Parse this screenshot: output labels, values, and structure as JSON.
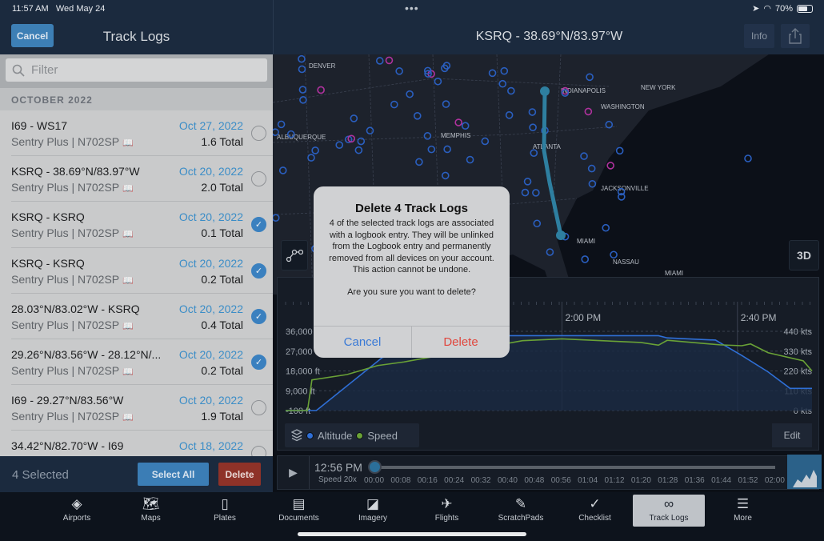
{
  "status_bar": {
    "time": "11:57 AM",
    "date": "Wed May 24",
    "battery": "70%",
    "battery_level": 0.7
  },
  "left": {
    "cancel": "Cancel",
    "title": "Track Logs",
    "filter_placeholder": "Filter",
    "section": "OCTOBER 2022",
    "rows": [
      {
        "title": "I69 - WS17",
        "subtitle": "Sentry Plus | N702SP",
        "date": "Oct 27, 2022",
        "total": "1.6 Total",
        "selected": false
      },
      {
        "title": "KSRQ - 38.69°N/83.97°W",
        "subtitle": "Sentry Plus | N702SP",
        "date": "Oct 20, 2022",
        "total": "2.0 Total",
        "selected": false
      },
      {
        "title": "KSRQ - KSRQ",
        "subtitle": "Sentry Plus | N702SP",
        "date": "Oct 20, 2022",
        "total": "0.1 Total",
        "selected": true
      },
      {
        "title": "KSRQ - KSRQ",
        "subtitle": "Sentry Plus | N702SP",
        "date": "Oct 20, 2022",
        "total": "0.2 Total",
        "selected": true
      },
      {
        "title": "28.03°N/83.02°W - KSRQ",
        "subtitle": "Sentry Plus | N702SP",
        "date": "Oct 20, 2022",
        "total": "0.4 Total",
        "selected": true
      },
      {
        "title": "29.26°N/83.56°W - 28.12°N/...",
        "subtitle": "Sentry Plus | N702SP",
        "date": "Oct 20, 2022",
        "total": "0.2 Total",
        "selected": true
      },
      {
        "title": "I69 - 29.27°N/83.56°W",
        "subtitle": "Sentry Plus | N702SP",
        "date": "Oct 20, 2022",
        "total": "1.9 Total",
        "selected": false
      },
      {
        "title": "34.42°N/82.70°W - I69",
        "subtitle": "",
        "date": "Oct 18, 2022",
        "total": "",
        "selected": false
      }
    ],
    "selected_count": "4 Selected",
    "select_all": "Select All",
    "delete": "Delete"
  },
  "right": {
    "title": "KSRQ - 38.69°N/83.97°W",
    "info": "Info",
    "three_d": "3D",
    "map_labels": [
      "DENVER",
      "INDIANAPOLIS",
      "NEW YORK",
      "WASHINGTON",
      "ALBUQUERQUE",
      "MEMPHIS",
      "ATLANTA",
      "JACKSONVILLE",
      "MIAMI",
      "NASSAU",
      "MIAMI"
    ],
    "route_color": "#2e7fa0",
    "legend": {
      "altitude": "Altitude",
      "speed": "Speed",
      "edit": "Edit"
    },
    "timeline": {
      "current": "12:56 PM",
      "speed": "Speed 20x",
      "ticks": [
        "00:00",
        "00:08",
        "00:16",
        "00:24",
        "00:32",
        "00:40",
        "00:48",
        "00:56",
        "01:04",
        "01:12",
        "01:20",
        "01:28",
        "01:36",
        "01:44",
        "01:52",
        "02:00"
      ],
      "progress": 0
    }
  },
  "chart_data": {
    "type": "line",
    "x_ticks": [
      "2:00 PM",
      "2:40 PM"
    ],
    "xlim": [
      "12:57",
      "2:57"
    ],
    "left_axis": {
      "ticks": [
        "36,000 ft",
        "27,000 ft",
        "18,000 ft",
        "9,000 ft",
        "-100 ft"
      ],
      "ylim": [
        -100,
        36000
      ]
    },
    "right_axis": {
      "ticks": [
        "440 kts",
        "330 kts",
        "220 kts",
        "110 kts",
        "0 kts"
      ],
      "ylim": [
        0,
        440
      ]
    },
    "grid": true,
    "series": [
      {
        "name": "Altitude",
        "color": "#2f6fd6",
        "axis": "left",
        "x": [
          "12:57",
          "1:04",
          "1:19",
          "1:35",
          "2:22",
          "2:24",
          "2:35",
          "2:41",
          "2:47",
          "2:52",
          "2:57"
        ],
        "y": [
          -100,
          -100,
          24000,
          34000,
          34000,
          33000,
          32000,
          25000,
          17500,
          10000,
          10000
        ]
      },
      {
        "name": "Speed",
        "color": "#6aa236",
        "axis": "right",
        "x": [
          "12:57",
          "1:02",
          "1:03",
          "1:11",
          "1:18",
          "1:24",
          "1:51",
          "2:00",
          "2:18",
          "2:22",
          "2:24",
          "2:36",
          "2:41",
          "2:43",
          "2:47",
          "2:55",
          "2:57"
        ],
        "y": [
          0,
          0,
          170,
          200,
          250,
          270,
          388,
          398,
          378,
          363,
          390,
          365,
          360,
          370,
          321,
          276,
          220
        ]
      }
    ]
  },
  "alert": {
    "title": "Delete 4 Track Logs",
    "message": "4 of the selected track logs are associated with a logbook entry. They will be unlinked from the Logbook entry and permanently removed from all devices on your account. This action cannot be undone.",
    "question": "Are you sure you want to delete?",
    "cancel": "Cancel",
    "delete": "Delete"
  },
  "tabs": [
    {
      "label": "Airports",
      "icon": "airport-icon"
    },
    {
      "label": "Maps",
      "icon": "map-icon"
    },
    {
      "label": "Plates",
      "icon": "plates-icon"
    },
    {
      "label": "Documents",
      "icon": "documents-icon"
    },
    {
      "label": "Imagery",
      "icon": "imagery-icon"
    },
    {
      "label": "Flights",
      "icon": "flights-icon"
    },
    {
      "label": "ScratchPads",
      "icon": "pencil-icon"
    },
    {
      "label": "Checklist",
      "icon": "checkmark-icon"
    },
    {
      "label": "Track Logs",
      "icon": "track-logs-icon",
      "active": true
    },
    {
      "label": "More",
      "icon": "menu-icon"
    }
  ]
}
